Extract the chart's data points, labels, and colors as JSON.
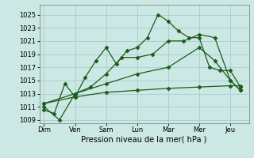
{
  "background_color": "#cce8e4",
  "grid_color": "#a8ccca",
  "line_color": "#1a5c1a",
  "xlabel": "Pression niveau de la mer( hPa )",
  "ylim": [
    1008.5,
    1026.5
  ],
  "yticks": [
    1009,
    1011,
    1013,
    1015,
    1017,
    1019,
    1021,
    1023,
    1025
  ],
  "x_labels": [
    "Dim",
    "Ven",
    "Sam",
    "Lun",
    "Mar",
    "Mer",
    "Jeu"
  ],
  "x_positions": [
    0,
    1,
    2,
    3,
    4,
    5,
    6
  ],
  "xlim": [
    -0.15,
    6.6
  ],
  "series1_x": [
    0.0,
    0.33,
    0.67,
    1.0,
    1.33,
    1.67,
    2.0,
    2.33,
    2.67,
    3.0,
    3.33,
    3.67,
    4.0,
    4.33,
    4.67,
    5.0,
    5.33,
    5.67,
    6.0,
    6.33
  ],
  "series1_y": [
    1010.5,
    1010.0,
    1014.5,
    1012.5,
    1015.5,
    1018.0,
    1020.0,
    1017.5,
    1019.5,
    1020.0,
    1021.5,
    1025.0,
    1024.0,
    1022.5,
    1021.5,
    1021.5,
    1017.0,
    1016.5,
    1016.5,
    1014.0
  ],
  "series2_x": [
    0.0,
    0.5,
    1.0,
    1.5,
    2.0,
    2.5,
    3.0,
    3.5,
    4.0,
    4.5,
    5.0,
    5.5,
    6.0,
    6.33
  ],
  "series2_y": [
    1011.0,
    1009.0,
    1013.0,
    1014.0,
    1016.0,
    1018.5,
    1018.5,
    1019.0,
    1021.0,
    1021.0,
    1022.0,
    1021.5,
    1015.0,
    1013.5
  ],
  "series3_x": [
    0.0,
    1.0,
    2.0,
    3.0,
    4.0,
    5.0,
    5.5,
    6.0,
    6.33
  ],
  "series3_y": [
    1011.5,
    1013.0,
    1014.5,
    1016.0,
    1017.0,
    1020.0,
    1018.0,
    1015.0,
    1013.5
  ],
  "series4_x": [
    0.0,
    1.0,
    2.0,
    3.0,
    4.0,
    5.0,
    6.0,
    6.33
  ],
  "series4_y": [
    1011.5,
    1012.5,
    1013.2,
    1013.5,
    1013.8,
    1014.0,
    1014.2,
    1014.2
  ]
}
